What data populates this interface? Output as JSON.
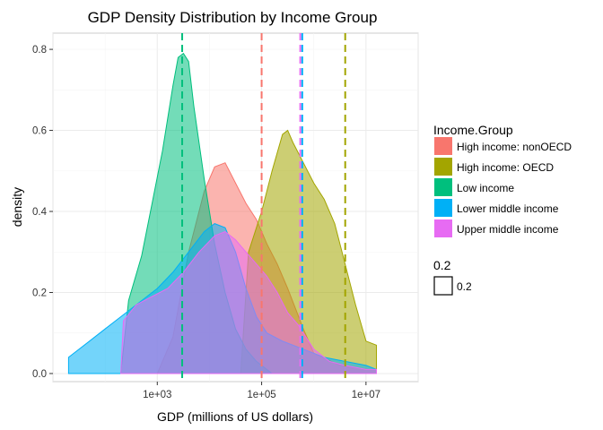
{
  "chart_data": {
    "type": "area",
    "title": "GDP Density Distribution by Income Group",
    "xlabel": "GDP (millions of US dollars)",
    "ylabel": "density",
    "x_scale": "log10",
    "xlim": [
      10,
      100000000
    ],
    "ylim": [
      -0.02,
      0.84
    ],
    "x_ticks": [
      {
        "value": 1000,
        "label": "1e+03"
      },
      {
        "value": 100000,
        "label": "1e+05"
      },
      {
        "value": 10000000,
        "label": "1e+07"
      }
    ],
    "y_ticks": [
      {
        "value": 0.0,
        "label": "0.0"
      },
      {
        "value": 0.2,
        "label": "0.2"
      },
      {
        "value": 0.4,
        "label": "0.4"
      },
      {
        "value": 0.6,
        "label": "0.6"
      },
      {
        "value": 0.8,
        "label": "0.8"
      }
    ],
    "grid": true,
    "legend_position": "right",
    "legend_title": "Income.Group",
    "size_legend": {
      "title": "0.2",
      "label": "0.2"
    },
    "series": [
      {
        "name": "High income: nonOECD",
        "color": "#F8766D",
        "mean_line": 100000,
        "points": [
          [
            3.0,
            0
          ],
          [
            3.3,
            0.09
          ],
          [
            3.6,
            0.3
          ],
          [
            3.9,
            0.45
          ],
          [
            4.1,
            0.51
          ],
          [
            4.3,
            0.52
          ],
          [
            4.5,
            0.47
          ],
          [
            4.7,
            0.42
          ],
          [
            4.9,
            0.38
          ],
          [
            5.1,
            0.32
          ],
          [
            5.3,
            0.27
          ],
          [
            5.5,
            0.21
          ],
          [
            5.8,
            0.11
          ],
          [
            6.0,
            0.05
          ],
          [
            6.5,
            0.02
          ],
          [
            7.0,
            0.01
          ],
          [
            7.2,
            0.01
          ]
        ]
      },
      {
        "name": "High income: OECD",
        "color": "#A3A500",
        "mean_line": 4000000,
        "points": [
          [
            4.6,
            0
          ],
          [
            4.75,
            0.3
          ],
          [
            5.0,
            0.4
          ],
          [
            5.2,
            0.5
          ],
          [
            5.4,
            0.59
          ],
          [
            5.5,
            0.6
          ],
          [
            5.6,
            0.57
          ],
          [
            5.8,
            0.52
          ],
          [
            6.0,
            0.47
          ],
          [
            6.2,
            0.43
          ],
          [
            6.4,
            0.37
          ],
          [
            6.6,
            0.27
          ],
          [
            6.8,
            0.17
          ],
          [
            7.0,
            0.08
          ],
          [
            7.2,
            0.07
          ],
          [
            7.2,
            0
          ]
        ]
      },
      {
        "name": "Low income",
        "color": "#00BF7D",
        "mean_line": 3000,
        "points": [
          [
            2.3,
            0
          ],
          [
            2.45,
            0.18
          ],
          [
            2.7,
            0.29
          ],
          [
            2.9,
            0.42
          ],
          [
            3.1,
            0.55
          ],
          [
            3.3,
            0.71
          ],
          [
            3.4,
            0.78
          ],
          [
            3.5,
            0.79
          ],
          [
            3.6,
            0.77
          ],
          [
            3.7,
            0.66
          ],
          [
            3.9,
            0.48
          ],
          [
            4.1,
            0.32
          ],
          [
            4.3,
            0.2
          ],
          [
            4.5,
            0.11
          ],
          [
            4.7,
            0.06
          ],
          [
            4.9,
            0.03
          ],
          [
            5.2,
            0
          ]
        ]
      },
      {
        "name": "Lower middle income",
        "color": "#00B0F6",
        "mean_line": 600000,
        "points": [
          [
            1.3,
            0.01
          ],
          [
            1.3,
            0.04
          ],
          [
            1.7,
            0.08
          ],
          [
            2.0,
            0.11
          ],
          [
            2.3,
            0.14
          ],
          [
            2.6,
            0.17
          ],
          [
            3.0,
            0.21
          ],
          [
            3.3,
            0.25
          ],
          [
            3.6,
            0.3
          ],
          [
            3.9,
            0.35
          ],
          [
            4.1,
            0.37
          ],
          [
            4.3,
            0.36
          ],
          [
            4.5,
            0.3
          ],
          [
            4.7,
            0.21
          ],
          [
            4.9,
            0.14
          ],
          [
            5.1,
            0.1
          ],
          [
            5.4,
            0.08
          ],
          [
            5.8,
            0.06
          ],
          [
            6.2,
            0.04
          ],
          [
            6.6,
            0.03
          ],
          [
            7.0,
            0.02
          ],
          [
            7.2,
            0.01
          ]
        ]
      },
      {
        "name": "Upper middle income",
        "color": "#E76BF3",
        "mean_line": 550000,
        "points": [
          [
            2.3,
            0
          ],
          [
            2.35,
            0.13
          ],
          [
            2.6,
            0.17
          ],
          [
            2.9,
            0.19
          ],
          [
            3.2,
            0.21
          ],
          [
            3.5,
            0.25
          ],
          [
            3.8,
            0.3
          ],
          [
            4.1,
            0.34
          ],
          [
            4.3,
            0.35
          ],
          [
            4.5,
            0.33
          ],
          [
            4.7,
            0.3
          ],
          [
            4.9,
            0.27
          ],
          [
            5.1,
            0.24
          ],
          [
            5.3,
            0.2
          ],
          [
            5.5,
            0.15
          ],
          [
            5.7,
            0.12
          ],
          [
            6.0,
            0.06
          ],
          [
            6.3,
            0.03
          ],
          [
            6.6,
            0.02
          ],
          [
            7.0,
            0.01
          ],
          [
            7.2,
            0.01
          ]
        ]
      }
    ]
  }
}
